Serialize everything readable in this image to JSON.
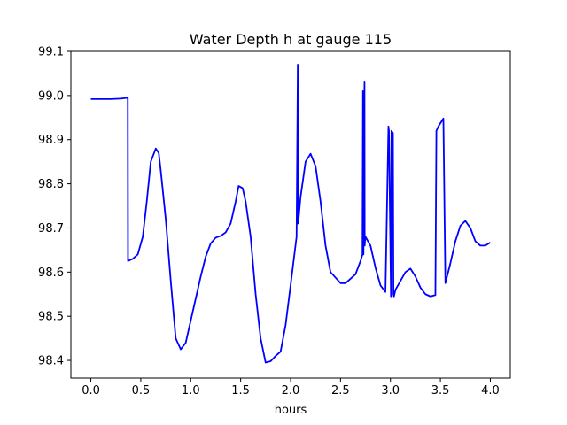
{
  "chart_data": {
    "type": "line",
    "title": "Water Depth h at gauge 115",
    "xlabel": "hours",
    "ylabel": "",
    "xlim": [
      -0.2,
      4.2
    ],
    "ylim": [
      98.36,
      99.1
    ],
    "xticks": [
      0.0,
      0.5,
      1.0,
      1.5,
      2.0,
      2.5,
      3.0,
      3.5,
      4.0
    ],
    "xtick_labels": [
      "0.0",
      "0.5",
      "1.0",
      "1.5",
      "2.0",
      "2.5",
      "3.0",
      "3.5",
      "4.0"
    ],
    "yticks": [
      98.4,
      98.5,
      98.6,
      98.7,
      98.8,
      98.9,
      99.0,
      99.1
    ],
    "ytick_labels": [
      "98.4",
      "98.5",
      "98.6",
      "98.7",
      "98.8",
      "98.9",
      "99.0",
      "99.1"
    ],
    "grid": false,
    "series": [
      {
        "color": "#0000ff",
        "x": [
          0.0,
          0.1,
          0.2,
          0.3,
          0.37,
          0.372,
          0.42,
          0.47,
          0.52,
          0.56,
          0.6,
          0.65,
          0.68,
          0.7,
          0.75,
          0.8,
          0.85,
          0.9,
          0.95,
          1.0,
          1.05,
          1.1,
          1.15,
          1.2,
          1.25,
          1.3,
          1.35,
          1.4,
          1.45,
          1.48,
          1.52,
          1.55,
          1.6,
          1.65,
          1.7,
          1.75,
          1.8,
          1.85,
          1.9,
          1.95,
          2.0,
          2.06,
          2.072,
          2.074,
          2.075,
          2.08,
          2.1,
          2.15,
          2.2,
          2.25,
          2.3,
          2.35,
          2.4,
          2.5,
          2.55,
          2.6,
          2.65,
          2.7,
          2.72,
          2.725,
          2.73,
          2.74,
          2.742,
          2.745,
          2.75,
          2.8,
          2.85,
          2.9,
          2.95,
          2.98,
          2.985,
          3.005,
          3.01,
          3.025,
          3.03,
          3.035,
          3.04,
          3.05,
          3.1,
          3.15,
          3.2,
          3.25,
          3.3,
          3.35,
          3.4,
          3.45,
          3.46,
          3.48,
          3.53,
          3.55,
          3.6,
          3.65,
          3.7,
          3.75,
          3.8,
          3.85,
          3.9,
          3.95,
          4.0
        ],
        "y": [
          98.992,
          98.992,
          98.992,
          98.993,
          98.995,
          98.625,
          98.63,
          98.64,
          98.68,
          98.76,
          98.85,
          98.88,
          98.87,
          98.83,
          98.72,
          98.58,
          98.45,
          98.425,
          98.44,
          98.49,
          98.54,
          98.59,
          98.635,
          98.665,
          98.678,
          98.682,
          98.69,
          98.71,
          98.76,
          98.795,
          98.79,
          98.76,
          98.68,
          98.55,
          98.45,
          98.395,
          98.398,
          98.41,
          98.42,
          98.48,
          98.57,
          98.68,
          99.07,
          98.75,
          98.71,
          98.72,
          98.77,
          98.85,
          98.868,
          98.84,
          98.76,
          98.66,
          98.6,
          98.575,
          98.575,
          98.585,
          98.595,
          98.625,
          98.64,
          99.01,
          98.64,
          99.03,
          98.66,
          98.67,
          98.68,
          98.66,
          98.61,
          98.57,
          98.555,
          98.93,
          98.92,
          98.545,
          98.92,
          98.915,
          98.55,
          98.545,
          98.55,
          98.56,
          98.58,
          98.6,
          98.608,
          98.59,
          98.565,
          98.55,
          98.545,
          98.548,
          98.92,
          98.93,
          98.948,
          98.575,
          98.62,
          98.67,
          98.705,
          98.716,
          98.7,
          98.67,
          98.66,
          98.66,
          98.667
        ]
      }
    ]
  }
}
